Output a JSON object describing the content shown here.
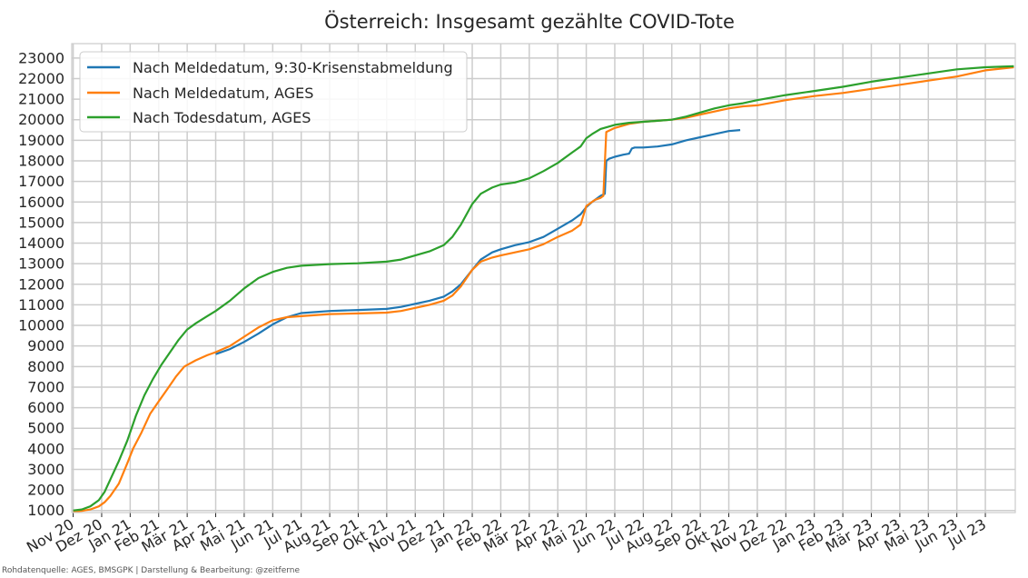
{
  "chart_data": {
    "type": "line",
    "title": "Österreich: Insgesamt gezählte COVID-Tote",
    "xlabel": "",
    "ylabel": "",
    "x_tick_labels": [
      "Nov 20",
      "Dez 20",
      "Jan 21",
      "Feb 21",
      "Mär 21",
      "Apr 21",
      "Mai 21",
      "Jun 21",
      "Jul 21",
      "Aug 21",
      "Sep 21",
      "Okt 21",
      "Nov 21",
      "Dez 21",
      "Jan 22",
      "Feb 22",
      "Mär 22",
      "Apr 22",
      "Mai 22",
      "Jun 22",
      "Jul 22",
      "Aug 22",
      "Sep 22",
      "Okt 22",
      "Nov 22",
      "Dez 22",
      "Jan 23",
      "Feb 23",
      "Mär 23",
      "Apr 23",
      "Mai 23",
      "Jun 23",
      "Jul 23"
    ],
    "xlim": [
      -0.05,
      33.05
    ],
    "ylim": [
      900,
      23700
    ],
    "y_ticks": [
      1000,
      2000,
      3000,
      4000,
      5000,
      6000,
      7000,
      8000,
      9000,
      10000,
      11000,
      12000,
      13000,
      14000,
      15000,
      16000,
      17000,
      18000,
      19000,
      20000,
      21000,
      22000,
      23000
    ],
    "grid": true,
    "legend_position": "top-left",
    "series": [
      {
        "name": "Nach Meldedatum, 9:30-Krisenstabmeldung",
        "color": "#1f77b4",
        "x": [
          5.0,
          5.5,
          6.0,
          6.5,
          7.0,
          7.5,
          8.0,
          9.0,
          10.0,
          11.0,
          11.5,
          12.0,
          12.5,
          13.0,
          13.3,
          13.6,
          14.0,
          14.3,
          14.7,
          15.0,
          15.5,
          16.0,
          16.5,
          17.0,
          17.5,
          17.8,
          18.0,
          18.2,
          18.5,
          18.65,
          18.7,
          18.8,
          19.0,
          19.3,
          19.5,
          19.6,
          19.7,
          20.0,
          20.5,
          21.0,
          21.5,
          22.0,
          22.5,
          23.0,
          23.4
        ],
        "y": [
          8600,
          8850,
          9200,
          9600,
          10050,
          10400,
          10600,
          10700,
          10750,
          10800,
          10900,
          11050,
          11200,
          11400,
          11650,
          12000,
          12700,
          13200,
          13550,
          13700,
          13900,
          14050,
          14300,
          14700,
          15100,
          15400,
          15750,
          16000,
          16300,
          16400,
          18000,
          18100,
          18200,
          18300,
          18350,
          18600,
          18650,
          18650,
          18700,
          18800,
          19000,
          19150,
          19300,
          19450,
          19500
        ]
      },
      {
        "name": "Nach Meldedatum, AGES",
        "color": "#ff7f0e",
        "x": [
          0.0,
          0.3,
          0.6,
          0.9,
          1.1,
          1.3,
          1.6,
          1.9,
          2.1,
          2.4,
          2.7,
          3.0,
          3.3,
          3.6,
          3.9,
          4.3,
          4.7,
          5.0,
          5.5,
          6.0,
          6.5,
          7.0,
          7.5,
          8.0,
          9.0,
          10.0,
          11.0,
          11.5,
          12.0,
          12.5,
          13.0,
          13.3,
          13.6,
          14.0,
          14.3,
          14.7,
          15.0,
          15.5,
          16.0,
          16.5,
          17.0,
          17.5,
          17.8,
          18.0,
          18.1,
          18.3,
          18.5,
          18.6,
          18.7,
          19.0,
          19.5,
          20.0,
          20.5,
          21.0,
          21.5,
          22.0,
          22.5,
          23.0,
          23.5,
          24.0,
          25.0,
          26.0,
          27.0,
          28.0,
          29.0,
          30.0,
          31.0,
          32.0,
          33.0
        ],
        "y": [
          950,
          980,
          1050,
          1200,
          1400,
          1700,
          2300,
          3300,
          4000,
          4800,
          5700,
          6300,
          6900,
          7500,
          8000,
          8300,
          8550,
          8700,
          9000,
          9450,
          9900,
          10250,
          10400,
          10450,
          10550,
          10580,
          10620,
          10700,
          10850,
          11000,
          11200,
          11450,
          11900,
          12700,
          13100,
          13300,
          13400,
          13550,
          13700,
          13950,
          14300,
          14600,
          14900,
          15800,
          15900,
          16100,
          16200,
          16300,
          19400,
          19600,
          19800,
          19900,
          19950,
          20000,
          20100,
          20250,
          20400,
          20550,
          20650,
          20700,
          20950,
          21150,
          21300,
          21500,
          21700,
          21900,
          22100,
          22400,
          22550
        ]
      },
      {
        "name": "Nach Todesdatum, AGES",
        "color": "#2ca02c",
        "x": [
          0.0,
          0.3,
          0.6,
          0.9,
          1.1,
          1.3,
          1.6,
          1.9,
          2.2,
          2.5,
          2.8,
          3.1,
          3.4,
          3.7,
          4.0,
          4.3,
          4.7,
          5.0,
          5.5,
          6.0,
          6.5,
          7.0,
          7.5,
          8.0,
          9.0,
          10.0,
          11.0,
          11.5,
          12.0,
          12.5,
          13.0,
          13.3,
          13.6,
          14.0,
          14.3,
          14.7,
          15.0,
          15.5,
          16.0,
          16.5,
          17.0,
          17.5,
          17.8,
          18.0,
          18.2,
          18.5,
          19.0,
          19.5,
          20.0,
          20.5,
          21.0,
          21.5,
          22.0,
          22.5,
          23.0,
          23.5,
          24.0,
          25.0,
          26.0,
          27.0,
          28.0,
          29.0,
          30.0,
          31.0,
          32.0,
          33.0
        ],
        "y": [
          1000,
          1050,
          1200,
          1500,
          1900,
          2500,
          3400,
          4400,
          5600,
          6600,
          7400,
          8100,
          8700,
          9300,
          9800,
          10100,
          10450,
          10700,
          11200,
          11800,
          12300,
          12600,
          12800,
          12900,
          12980,
          13020,
          13100,
          13200,
          13400,
          13600,
          13900,
          14300,
          14900,
          15900,
          16400,
          16700,
          16850,
          16950,
          17150,
          17500,
          17900,
          18400,
          18700,
          19100,
          19300,
          19550,
          19750,
          19850,
          19900,
          19950,
          20000,
          20150,
          20350,
          20550,
          20700,
          20800,
          20950,
          21200,
          21400,
          21600,
          21850,
          22050,
          22250,
          22450,
          22550,
          22600
        ]
      }
    ]
  },
  "footnote": "Rohdatenquelle: AGES, BMSGPK | Darstellung & Bearbeitung: @zeitferne"
}
